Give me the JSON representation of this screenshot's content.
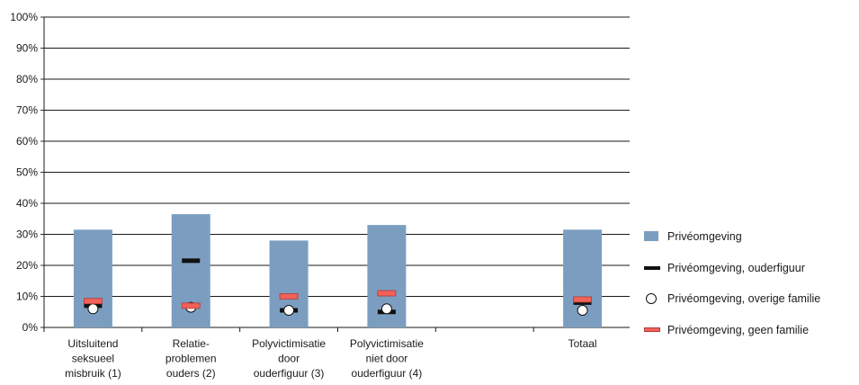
{
  "chart_data": {
    "type": "bar",
    "categories": [
      [
        "Uitsluitend",
        "seksueel",
        "misbruik (1)"
      ],
      [
        "Relatie-",
        "problemen",
        "ouders (2)"
      ],
      [
        "Polyvictimisatie",
        "door",
        "ouderfiguur (3)"
      ],
      [
        "Polyvictimisatie",
        "niet door",
        "ouderfiguur (4)"
      ],
      [
        ""
      ],
      [
        "Totaal"
      ]
    ],
    "y_ticks": [
      "0%",
      "10%",
      "20%",
      "30%",
      "40%",
      "50%",
      "60%",
      "70%",
      "80%",
      "90%",
      "100%"
    ],
    "ylim": [
      0,
      100
    ],
    "grid": true,
    "legend_position": "right",
    "series": [
      {
        "name": "Privéomgeving",
        "style": "bar",
        "color": "#7b9ec0",
        "values": [
          31.5,
          36.5,
          28,
          33,
          null,
          31.5
        ]
      },
      {
        "name": "Privéomgeving, ouderfiguur",
        "style": "dash",
        "color": "#111111",
        "values": [
          7,
          21.5,
          5.5,
          5,
          null,
          8
        ]
      },
      {
        "name": "Privéomgeving, overige familie",
        "style": "circle",
        "color": "#ffffff",
        "values": [
          6,
          6.5,
          5.5,
          6,
          null,
          5.5
        ]
      },
      {
        "name": "Privéomgeving, geen familie",
        "style": "redbar",
        "color": "#f0625a",
        "values": [
          8.5,
          7,
          10,
          11,
          null,
          9
        ]
      }
    ]
  }
}
